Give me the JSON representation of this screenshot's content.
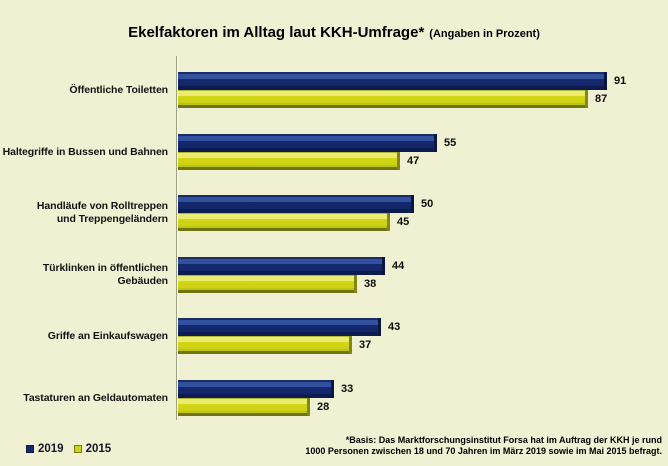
{
  "title": {
    "main": "Ekelfaktoren im Alltag laut KKH-Umfrage*",
    "suffix": "(Angaben in Prozent)"
  },
  "legend": {
    "items": [
      {
        "label": "2019",
        "color": "#17286e"
      },
      {
        "label": "2015",
        "color": "#cdd21a"
      }
    ]
  },
  "footnote": {
    "line1": "*Basis: Das Marktforschungsinstitut Forsa hat im Auftrag der KKH je rund",
    "line2": "1000 Personen zwischen 18 und 70 Jahren im März 2019 sowie im Mai 2015 befragt."
  },
  "chart_data": {
    "type": "bar",
    "orientation": "horizontal",
    "title": "Ekelfaktoren im Alltag laut KKH-Umfrage* (Angaben in Prozent)",
    "unit": "percent",
    "categories": [
      "Öffentliche Toiletten",
      "Haltegriffe in Bussen und Bahnen",
      "Handläufe von Rolltreppen\nund Treppengeländern",
      "Türklinken in öffentlichen Gebäuden",
      "Griffe an Einkaufswagen",
      "Tastaturen an Geldautomaten"
    ],
    "series": [
      {
        "name": "2019",
        "color": "#17286e",
        "values": [
          91,
          55,
          50,
          44,
          43,
          33
        ]
      },
      {
        "name": "2015",
        "color": "#cdd21a",
        "values": [
          87,
          47,
          45,
          38,
          37,
          28
        ]
      }
    ],
    "xlim": [
      0,
      100
    ],
    "value_labels": true,
    "grid": false,
    "legend_position": "bottom-left",
    "background": "#eff1d2"
  }
}
